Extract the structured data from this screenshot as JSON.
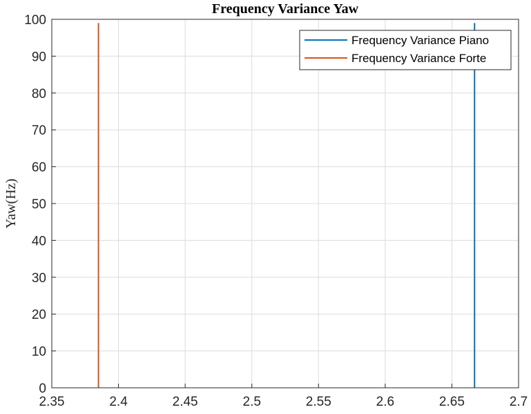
{
  "chart_data": {
    "type": "line",
    "title": "Frequency Variance Yaw",
    "xlabel": "",
    "ylabel": "Yaw(Hz)",
    "xlim": [
      2.35,
      2.7
    ],
    "ylim": [
      0,
      100
    ],
    "xticks": [
      "2.35",
      "2.4",
      "2.45",
      "2.5",
      "2.55",
      "2.6",
      "2.65",
      "2.7"
    ],
    "yticks": [
      "0",
      "10",
      "20",
      "30",
      "40",
      "50",
      "60",
      "70",
      "80",
      "90",
      "100"
    ],
    "grid": true,
    "legend_position": "top-right",
    "series": [
      {
        "name": "Frequency Variance Piano",
        "color": "#0072BD",
        "x": [
          2.667,
          2.667
        ],
        "y": [
          0,
          99
        ]
      },
      {
        "name": "Frequency Variance Forte",
        "color": "#D95319",
        "x": [
          2.385,
          2.385
        ],
        "y": [
          0,
          99
        ]
      }
    ]
  }
}
